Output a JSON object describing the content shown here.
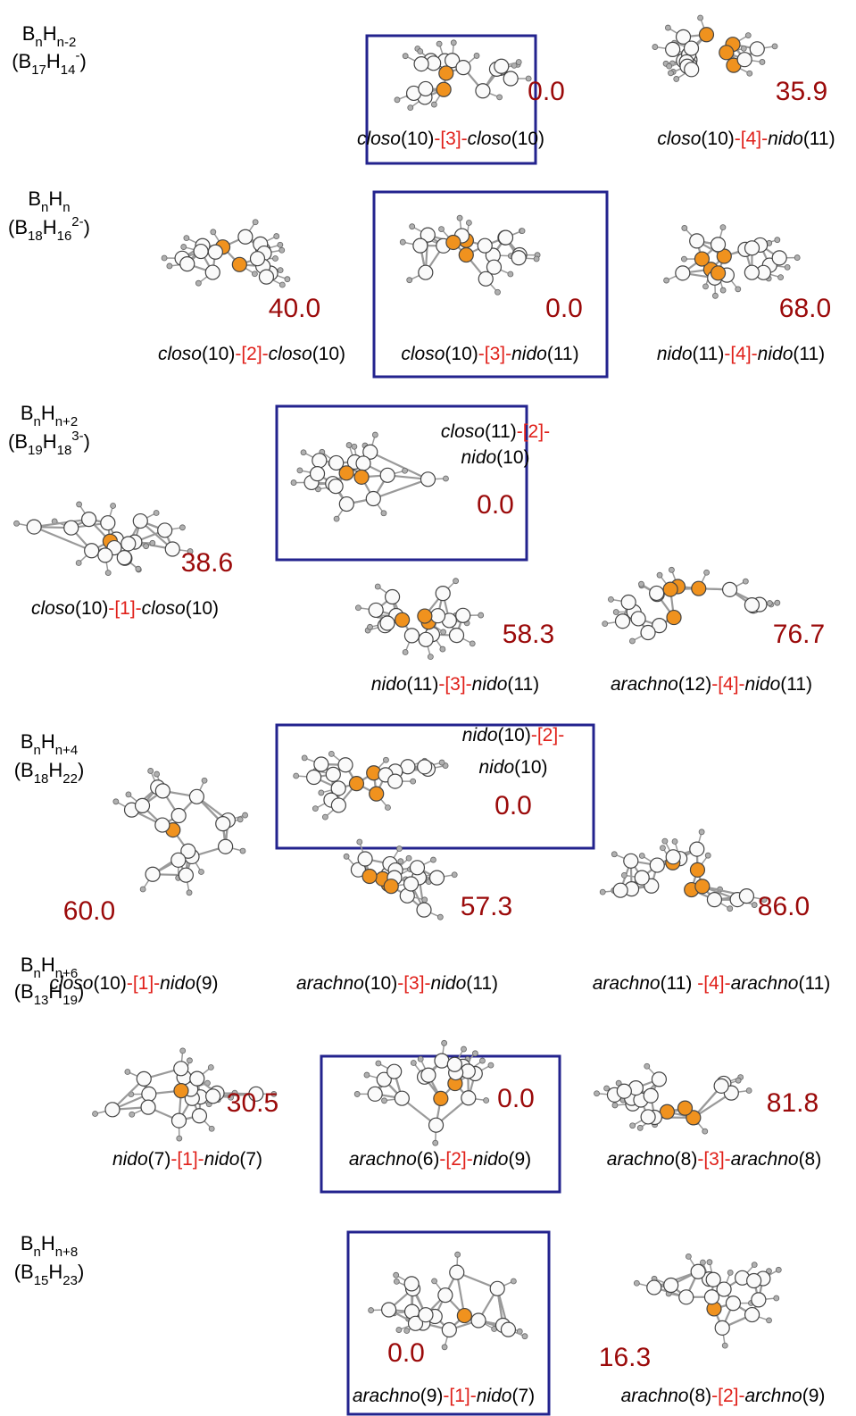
{
  "rows": [
    {
      "general": [
        {
          "text": "B"
        },
        {
          "sub": "n"
        },
        {
          "text": "H"
        },
        {
          "sub": "n-2"
        }
      ],
      "specific": [
        {
          "text": "(B"
        },
        {
          "sub": "17"
        },
        {
          "text": "H"
        },
        {
          "sub": "14"
        },
        {
          "sup": "-"
        },
        {
          "text": ")"
        }
      ],
      "isomers": [
        {
          "boxed": true,
          "energy": "0.0",
          "name": [
            [
              {
                "text": "closo",
                "style": "italic"
              },
              {
                "text": "(10)",
                "style": "plain"
              },
              {
                "text": "-[3]-",
                "style": "red"
              },
              {
                "text": "closo",
                "style": "italic"
              },
              {
                "text": "(10)",
                "style": "plain"
              }
            ]
          ]
        },
        {
          "boxed": false,
          "energy": "35.9",
          "name": [
            [
              {
                "text": "closo",
                "style": "italic"
              },
              {
                "text": "(10)",
                "style": "plain"
              },
              {
                "text": "-[4]-",
                "style": "red"
              },
              {
                "text": "nido",
                "style": "italic"
              },
              {
                "text": "(11)",
                "style": "plain"
              }
            ]
          ]
        }
      ]
    },
    {
      "general": [
        {
          "text": "B"
        },
        {
          "sub": "n"
        },
        {
          "text": "H"
        },
        {
          "sub": "n"
        }
      ],
      "specific": [
        {
          "text": "(B"
        },
        {
          "sub": "18"
        },
        {
          "text": "H"
        },
        {
          "sub": "16"
        },
        {
          "sup": "2-"
        },
        {
          "text": ")"
        }
      ],
      "isomers": [
        {
          "boxed": false,
          "energy": "40.0",
          "name": [
            [
              {
                "text": "closo",
                "style": "italic"
              },
              {
                "text": "(10)",
                "style": "plain"
              },
              {
                "text": "-[2]-",
                "style": "red"
              },
              {
                "text": "closo",
                "style": "italic"
              },
              {
                "text": "(10)",
                "style": "plain"
              }
            ]
          ]
        },
        {
          "boxed": true,
          "energy": "0.0",
          "name": [
            [
              {
                "text": "closo",
                "style": "italic"
              },
              {
                "text": "(10)",
                "style": "plain"
              },
              {
                "text": "-[3]-",
                "style": "red"
              },
              {
                "text": "nido",
                "style": "italic"
              },
              {
                "text": "(11)",
                "style": "plain"
              }
            ]
          ]
        },
        {
          "boxed": false,
          "energy": "68.0",
          "name": [
            [
              {
                "text": "nido",
                "style": "italic"
              },
              {
                "text": "(11)",
                "style": "plain"
              },
              {
                "text": "-[4]-",
                "style": "red"
              },
              {
                "text": "nido",
                "style": "italic"
              },
              {
                "text": "(11)",
                "style": "plain"
              }
            ]
          ]
        }
      ]
    },
    {
      "general": [
        {
          "text": "B"
        },
        {
          "sub": "n"
        },
        {
          "text": "H"
        },
        {
          "sub": "n+2"
        }
      ],
      "specific": [
        {
          "text": "(B"
        },
        {
          "sub": "19"
        },
        {
          "text": "H"
        },
        {
          "sub": "18"
        },
        {
          "sup": "3-"
        },
        {
          "text": ")"
        }
      ],
      "isomers": [
        {
          "boxed": true,
          "energy": "0.0",
          "name": [
            [
              {
                "text": "closo",
                "style": "italic"
              },
              {
                "text": "(11)",
                "style": "plain"
              },
              {
                "text": "-[2]-",
                "style": "red"
              }
            ],
            [
              {
                "text": "nido",
                "style": "italic"
              },
              {
                "text": "(10)",
                "style": "plain"
              }
            ]
          ]
        },
        {
          "boxed": false,
          "energy": "38.6",
          "name": [
            [
              {
                "text": "closo",
                "style": "italic"
              },
              {
                "text": "(10)",
                "style": "plain"
              },
              {
                "text": "-[1]-",
                "style": "red"
              },
              {
                "text": "closo",
                "style": "italic"
              },
              {
                "text": "(10)",
                "style": "plain"
              }
            ]
          ]
        },
        {
          "boxed": false,
          "energy": "58.3",
          "name": [
            [
              {
                "text": "nido",
                "style": "italic"
              },
              {
                "text": "(11)",
                "style": "plain"
              },
              {
                "text": "-[3]-",
                "style": "red"
              },
              {
                "text": "nido",
                "style": "italic"
              },
              {
                "text": "(11)",
                "style": "plain"
              }
            ]
          ]
        },
        {
          "boxed": false,
          "energy": "76.7",
          "name": [
            [
              {
                "text": "arachno",
                "style": "italic"
              },
              {
                "text": "(12)",
                "style": "plain"
              },
              {
                "text": "-[4]-",
                "style": "red"
              },
              {
                "text": "nido",
                "style": "italic"
              },
              {
                "text": "(11)",
                "style": "plain"
              }
            ]
          ]
        }
      ]
    },
    {
      "general": [
        {
          "text": "B"
        },
        {
          "sub": "n"
        },
        {
          "text": "H"
        },
        {
          "sub": "n+4"
        }
      ],
      "specific": [
        {
          "text": "(B"
        },
        {
          "sub": "18"
        },
        {
          "text": "H"
        },
        {
          "sub": "22"
        },
        {
          "text": ")"
        }
      ],
      "isomers": [
        {
          "boxed": true,
          "energy": "0.0",
          "name": [
            [
              {
                "text": "nido",
                "style": "italic"
              },
              {
                "text": "(10)",
                "style": "plain"
              },
              {
                "text": "-[2]-",
                "style": "red"
              }
            ],
            [
              {
                "text": "nido",
                "style": "italic"
              },
              {
                "text": "(10)",
                "style": "plain"
              }
            ]
          ]
        },
        {
          "boxed": false,
          "energy": "60.0",
          "name": [
            [
              {
                "text": "closo",
                "style": "italic"
              },
              {
                "text": "(10)",
                "style": "plain"
              },
              {
                "text": "-[1]-",
                "style": "red"
              },
              {
                "text": "nido",
                "style": "italic"
              },
              {
                "text": "(9)",
                "style": "plain"
              }
            ]
          ]
        },
        {
          "boxed": false,
          "energy": "57.3",
          "name": [
            [
              {
                "text": "arachno",
                "style": "italic"
              },
              {
                "text": "(10)",
                "style": "plain"
              },
              {
                "text": "-[3]-",
                "style": "red"
              },
              {
                "text": "nido",
                "style": "italic"
              },
              {
                "text": "(11)",
                "style": "plain"
              }
            ]
          ]
        },
        {
          "boxed": false,
          "energy": "86.0",
          "name": [
            [
              {
                "text": "arachno",
                "style": "italic"
              },
              {
                "text": "(11) ",
                "style": "plain"
              },
              {
                "text": "-[4]-",
                "style": "red"
              },
              {
                "text": "arachno",
                "style": "italic"
              },
              {
                "text": "(11)",
                "style": "plain"
              }
            ]
          ]
        }
      ]
    },
    {
      "general": [
        {
          "text": "B"
        },
        {
          "sub": "n"
        },
        {
          "text": "H"
        },
        {
          "sub": "n+6"
        }
      ],
      "specific": [
        {
          "text": "(B"
        },
        {
          "sub": "13"
        },
        {
          "text": "H"
        },
        {
          "sub": "19"
        },
        {
          "text": ")"
        }
      ],
      "isomers": [
        {
          "boxed": false,
          "energy": "30.5",
          "name": [
            [
              {
                "text": "nido",
                "style": "italic"
              },
              {
                "text": "(7)",
                "style": "plain"
              },
              {
                "text": "-[1]-",
                "style": "red"
              },
              {
                "text": "nido",
                "style": "italic"
              },
              {
                "text": "(7)",
                "style": "plain"
              }
            ]
          ]
        },
        {
          "boxed": true,
          "energy": "0.0",
          "name": [
            [
              {
                "text": "arachno",
                "style": "italic"
              },
              {
                "text": "(6)",
                "style": "plain"
              },
              {
                "text": "-[2]-",
                "style": "red"
              },
              {
                "text": "nido",
                "style": "italic"
              },
              {
                "text": "(9)",
                "style": "plain"
              }
            ]
          ]
        },
        {
          "boxed": false,
          "energy": "81.8",
          "name": [
            [
              {
                "text": "arachno",
                "style": "italic"
              },
              {
                "text": "(8)",
                "style": "plain"
              },
              {
                "text": "-[3]-",
                "style": "red"
              },
              {
                "text": "arachno",
                "style": "italic"
              },
              {
                "text": "(8)",
                "style": "plain"
              }
            ]
          ]
        }
      ]
    },
    {
      "general": [
        {
          "text": "B"
        },
        {
          "sub": "n"
        },
        {
          "text": "H"
        },
        {
          "sub": "n+8"
        }
      ],
      "specific": [
        {
          "text": "(B"
        },
        {
          "sub": "15"
        },
        {
          "text": "H"
        },
        {
          "sub": "23"
        },
        {
          "text": ")"
        }
      ],
      "isomers": [
        {
          "boxed": true,
          "energy": "0.0",
          "name": [
            [
              {
                "text": "arachno",
                "style": "italic"
              },
              {
                "text": "(9)",
                "style": "plain"
              },
              {
                "text": "-[1]-",
                "style": "red"
              },
              {
                "text": "nido",
                "style": "italic"
              },
              {
                "text": "(7)",
                "style": "plain"
              }
            ]
          ]
        },
        {
          "boxed": false,
          "energy": "16.3",
          "name": [
            [
              {
                "text": "arachno",
                "style": "italic"
              },
              {
                "text": "(8)",
                "style": "plain"
              },
              {
                "text": "-[2]-",
                "style": "red"
              },
              {
                "text": "archno",
                "style": "italic"
              },
              {
                "text": "(9)",
                "style": "plain"
              }
            ]
          ]
        }
      ]
    }
  ]
}
